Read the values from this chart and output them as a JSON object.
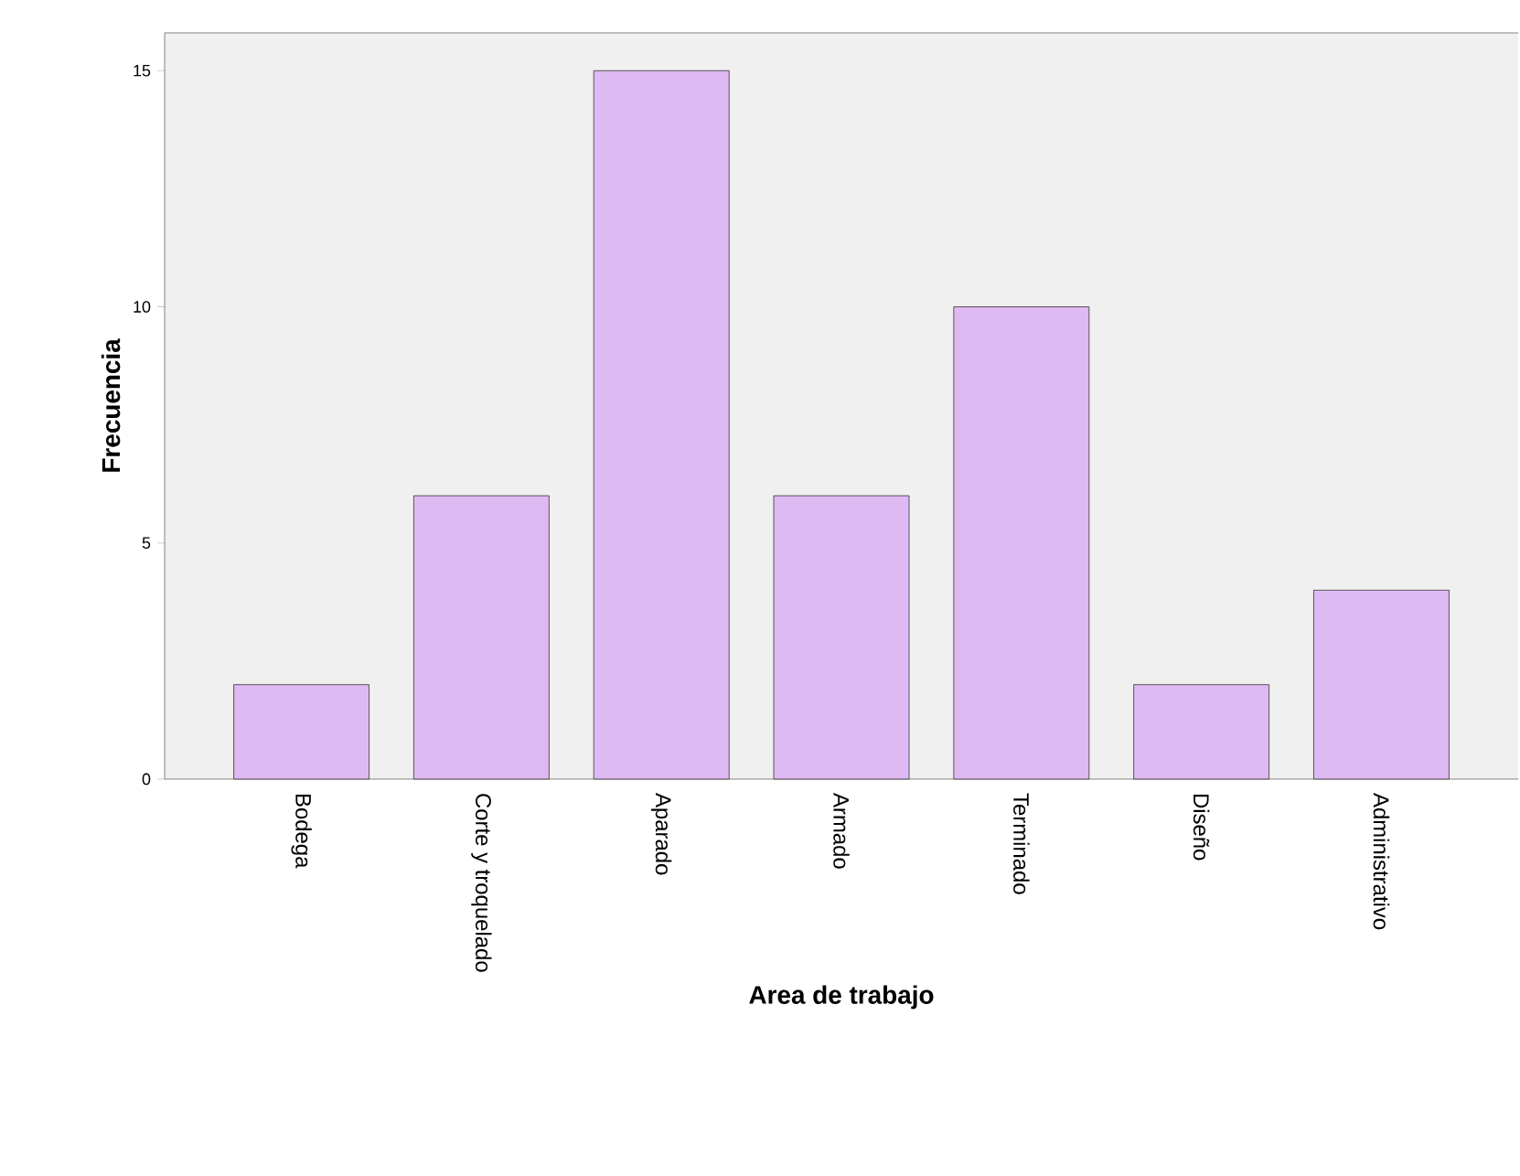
{
  "chart_data": {
    "type": "bar",
    "xlabel": "Area de trabajo",
    "ylabel": "Frecuencia",
    "categories": [
      "Bodega",
      "Corte y troquelado",
      "Aparado",
      "Armado",
      "Terminado",
      "Diseño",
      "Administrativo"
    ],
    "values": [
      2,
      6,
      15,
      6,
      10,
      2,
      4
    ],
    "color": "#dfb9f2",
    "ylim": [
      0,
      15.8
    ],
    "yticks": [
      0,
      5,
      10,
      15
    ],
    "grid": false
  }
}
